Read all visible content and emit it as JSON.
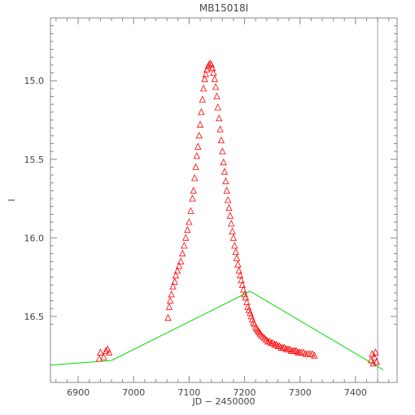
{
  "chart_data": {
    "type": "scatter",
    "title": "MB15018I",
    "xlabel": "JD − 2450000",
    "ylabel": "I",
    "xlim": [
      6850,
      7475
    ],
    "ylim": [
      16.92,
      14.6
    ],
    "y_inverted": true,
    "grid": false,
    "x_ticks": [
      6900,
      7000,
      7100,
      7200,
      7300,
      7400
    ],
    "y_ticks": [
      15.0,
      15.5,
      16.0,
      16.5
    ],
    "x_tick_labels": [
      "6900",
      "7000",
      "7100",
      "7200",
      "7300",
      "7400"
    ],
    "y_tick_labels": [
      "15.0",
      "15.5",
      "16.0",
      "16.5"
    ],
    "vertical_line_x": 7440,
    "colors": {
      "points": "#ff0000",
      "curve": "#00dd00",
      "vline": "#aaaacc",
      "axes": "#888888"
    },
    "series": [
      {
        "marker": "triangle",
        "x": [
          6938,
          6940,
          6946,
          6950,
          6953,
          6956,
          7062,
          7064,
          7066,
          7068,
          7071,
          7074,
          7076,
          7079,
          7082,
          7085,
          7088,
          7091,
          7094,
          7097,
          7100,
          7103,
          7106,
          7108,
          7110,
          7112,
          7114,
          7116,
          7118,
          7120,
          7122,
          7124,
          7126,
          7128,
          7130,
          7132,
          7134,
          7136,
          7138,
          7140,
          7142,
          7144,
          7146,
          7148,
          7150,
          7152,
          7154,
          7156,
          7158,
          7160,
          7162,
          7164,
          7166,
          7168,
          7170,
          7172,
          7174,
          7176,
          7178,
          7180,
          7182,
          7184,
          7186,
          7188,
          7190,
          7192,
          7194,
          7196,
          7198,
          7200,
          7202,
          7204,
          7206,
          7208,
          7210,
          7212,
          7214,
          7216,
          7218,
          7220,
          7222,
          7224,
          7226,
          7228,
          7230,
          7233,
          7236,
          7239,
          7242,
          7245,
          7248,
          7251,
          7254,
          7257,
          7260,
          7263,
          7266,
          7269,
          7272,
          7275,
          7278,
          7281,
          7284,
          7287,
          7290,
          7293,
          7296,
          7299,
          7302,
          7306,
          7310,
          7314,
          7318,
          7322,
          7326,
          7428,
          7430,
          7432,
          7434,
          7436,
          7438
        ],
        "y": [
          16.77,
          16.73,
          16.76,
          16.72,
          16.71,
          16.73,
          16.51,
          16.44,
          16.4,
          16.36,
          16.31,
          16.28,
          16.24,
          16.21,
          16.18,
          16.15,
          16.1,
          16.05,
          16.0,
          15.95,
          15.9,
          15.83,
          15.75,
          15.7,
          15.62,
          15.55,
          15.48,
          15.42,
          15.35,
          15.28,
          15.2,
          15.12,
          15.05,
          14.99,
          14.96,
          14.93,
          14.91,
          14.9,
          14.89,
          14.9,
          14.92,
          14.95,
          14.99,
          15.04,
          15.1,
          15.17,
          15.24,
          15.31,
          15.38,
          15.45,
          15.52,
          15.58,
          15.64,
          15.7,
          15.76,
          15.81,
          15.86,
          15.91,
          15.96,
          16.0,
          16.05,
          16.09,
          16.13,
          16.17,
          16.21,
          16.24,
          16.27,
          16.3,
          16.33,
          16.36,
          16.38,
          16.41,
          16.44,
          16.46,
          16.48,
          16.5,
          16.52,
          16.54,
          16.55,
          16.57,
          16.58,
          16.59,
          16.6,
          16.61,
          16.62,
          16.63,
          16.64,
          16.65,
          16.66,
          16.66,
          16.67,
          16.67,
          16.68,
          16.68,
          16.69,
          16.69,
          16.7,
          16.7,
          16.7,
          16.71,
          16.71,
          16.71,
          16.72,
          16.72,
          16.72,
          16.72,
          16.73,
          16.73,
          16.73,
          16.73,
          16.74,
          16.74,
          16.74,
          16.74,
          16.75,
          16.78,
          16.74,
          16.8,
          16.76,
          16.73,
          16.79
        ]
      },
      {
        "type": "line",
        "x": [
          6850,
          6960,
          7210,
          7450
        ],
        "y": [
          16.81,
          16.78,
          16.34,
          16.84
        ]
      }
    ]
  }
}
